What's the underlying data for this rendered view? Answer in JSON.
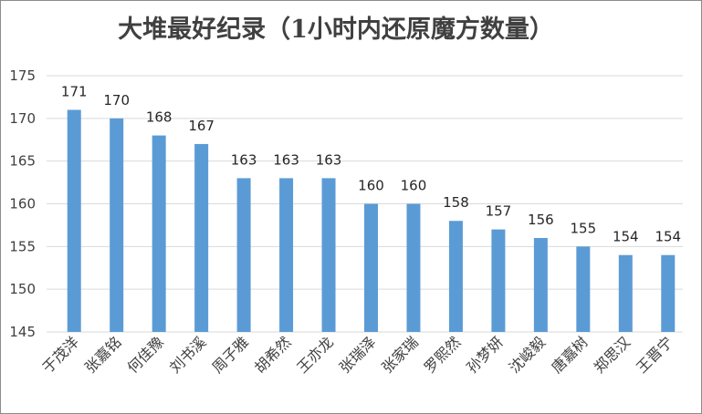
{
  "chart_data": {
    "type": "bar",
    "title": "大堆最好纪录（1小时内还原魔方数量）",
    "categories": [
      "于茂洋",
      "张嘉铭",
      "何佳豫",
      "刘书溪",
      "周子雅",
      "胡希然",
      "王亦龙",
      "张瑞泽",
      "张家瑞",
      "罗熙然",
      "孙梦妍",
      "沈峻毅",
      "唐嘉树",
      "郑思汉",
      "王晋宁"
    ],
    "values": [
      171,
      170,
      168,
      167,
      163,
      163,
      163,
      160,
      160,
      158,
      157,
      156,
      155,
      154,
      154
    ],
    "ylim": [
      145,
      175
    ],
    "yticks": [
      145,
      150,
      155,
      160,
      165,
      170,
      175
    ],
    "grid": true,
    "legend": "none",
    "bar_color": "#5b9bd5"
  }
}
